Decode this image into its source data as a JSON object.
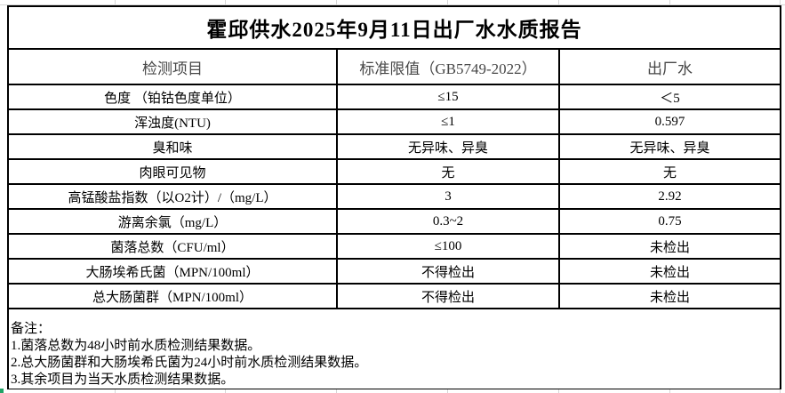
{
  "title": "霍邱供水2025年9月11日出厂水水质报告",
  "table": {
    "columns": [
      "检测项目",
      "标准限值（GB5749-2022）",
      "出厂水"
    ],
    "rows": [
      {
        "item": "色度 （铂钴色度单位）",
        "limit": "≤15",
        "value": "＜5"
      },
      {
        "item": "浑浊度(NTU)",
        "limit": "≤1",
        "value": "0.597"
      },
      {
        "item": "臭和味",
        "limit": "无异味、异臭",
        "value": "无异味、异臭"
      },
      {
        "item": "肉眼可见物",
        "limit": "无",
        "value": "无"
      },
      {
        "item": "高锰酸盐指数（以O2计）/（mg/L）",
        "limit": "3",
        "value": "2.92"
      },
      {
        "item": "游离余氯（mg/L）",
        "limit": "0.3~2",
        "value": "0.75"
      },
      {
        "item": "菌落总数（CFU/ml）",
        "limit": "≤100",
        "value": "未检出"
      },
      {
        "item": "大肠埃希氏菌（MPN/100ml）",
        "limit": "不得检出",
        "value": "未检出"
      },
      {
        "item": "总大肠菌群（MPN/100ml）",
        "limit": "不得检出",
        "value": "未检出"
      }
    ]
  },
  "notes": {
    "label": "备注：",
    "items": [
      "1.菌落总数为48小时前水质检测结果数据。",
      "2.总大肠菌群和大肠埃希氏菌为24小时前水质检测结果数据。",
      "3.其余项目为当天水质检测结果数据。"
    ]
  },
  "colors": {
    "table_border": "#000000",
    "gridline": "#d6d6d6",
    "selection_mark_green": "#21a366"
  }
}
